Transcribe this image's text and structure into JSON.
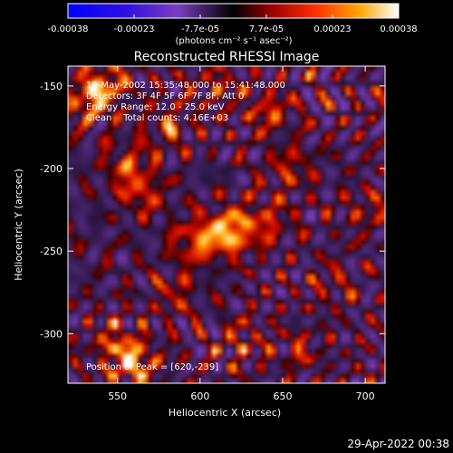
{
  "colorbar": {
    "tick_labels": [
      "-0.00038",
      "-0.00023",
      "-7.7e-05",
      "7.7e-05",
      "0.00023",
      "0.00038"
    ],
    "unit_label": "(photons cm⁻² s⁻¹ asec⁻²)",
    "range": [
      -0.00038,
      0.00038
    ]
  },
  "chart_data": {
    "type": "heatmap",
    "title": "Reconstructed RHESSI Image",
    "xlabel": "Heliocentric X (arcsec)",
    "ylabel": "Heliocentric Y (arcsec)",
    "xlim": [
      520,
      712
    ],
    "ylim": [
      -330,
      -138
    ],
    "xticks": [
      550,
      600,
      650,
      700
    ],
    "yticks": [
      -150,
      -200,
      -250,
      -300
    ],
    "colormap": "rhessi-blue-purple-red-yellow-white",
    "colors": {
      "negative_dark": "#0000ff",
      "negative_light": "#8060c0",
      "zero": "#000000",
      "mid": "#cc2000",
      "high": "#ff8c00",
      "peak": "#ffffff"
    },
    "peak": {
      "x": 620,
      "y": -239
    },
    "annotations": {
      "time_range": "10-May-2002 15:35:48.000 to 15:41:48.000",
      "detectors": "Detectors: 3F 4F 5F 6F 7F 8F, Att 0",
      "energy": "Energy Range: 12.0 - 25.0 keV",
      "clean": "Clean    Total counts: 4.16E+03",
      "peak_text": "Position of Peak = [620,-239]"
    },
    "features": [
      {
        "x": 618,
        "y": -238,
        "amp": 1.0
      },
      {
        "x": 598,
        "y": -244,
        "amp": 0.7
      },
      {
        "x": 640,
        "y": -232,
        "amp": 0.5
      },
      {
        "x": 532,
        "y": -158,
        "amp": 0.75
      },
      {
        "x": 545,
        "y": -148,
        "amp": 0.6
      },
      {
        "x": 556,
        "y": -198,
        "amp": 0.55
      },
      {
        "x": 565,
        "y": -215,
        "amp": 0.5
      },
      {
        "x": 580,
        "y": -175,
        "amp": 0.45
      },
      {
        "x": 642,
        "y": -165,
        "amp": 0.55
      },
      {
        "x": 610,
        "y": -150,
        "amp": 0.4
      },
      {
        "x": 655,
        "y": -200,
        "amp": 0.45
      },
      {
        "x": 560,
        "y": -318,
        "amp": 0.85
      },
      {
        "x": 548,
        "y": -305,
        "amp": 0.5
      },
      {
        "x": 625,
        "y": -305,
        "amp": 0.4
      },
      {
        "x": 660,
        "y": -310,
        "amp": 0.35
      },
      {
        "x": 585,
        "y": -275,
        "amp": 0.4
      },
      {
        "x": 700,
        "y": -225,
        "amp": 0.35
      },
      {
        "x": 680,
        "y": -270,
        "amp": 0.3
      }
    ]
  },
  "footer": {
    "timestamp": "29-Apr-2022 00:38"
  }
}
